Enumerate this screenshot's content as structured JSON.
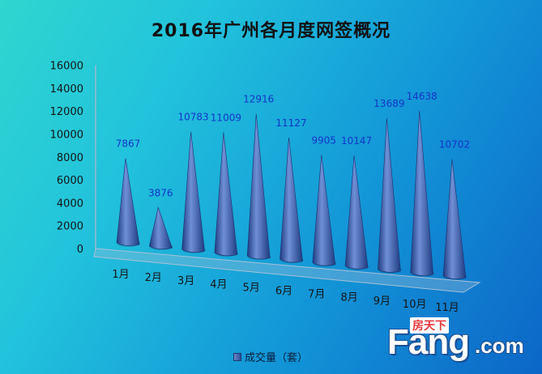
{
  "chart_data": {
    "type": "bar",
    "style": "3d-cone",
    "title": "2016年广州各月度网签概况",
    "categories": [
      "1月",
      "2月",
      "3月",
      "4月",
      "5月",
      "6月",
      "7月",
      "8月",
      "9月",
      "10月",
      "11月"
    ],
    "series": [
      {
        "name": "成交量（套）",
        "values": [
          7867,
          3876,
          10783,
          11009,
          12916,
          11127,
          9905,
          10147,
          13689,
          14638,
          10702
        ]
      }
    ],
    "ylim": [
      0,
      16000
    ],
    "yticks": [
      0,
      2000,
      4000,
      6000,
      8000,
      10000,
      12000,
      14000,
      16000
    ],
    "grid": false,
    "legend": "bottom",
    "colors": {
      "bar_light": "#6f8fd6",
      "bar_dark": "#1f3c80",
      "label": "#1434c8"
    }
  },
  "watermark": {
    "brand": "Fang",
    "domain": ".com",
    "cn": "房天下"
  }
}
